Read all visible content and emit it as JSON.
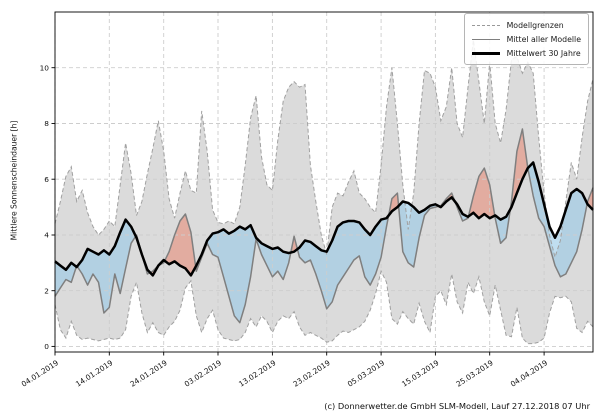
{
  "figure": {
    "caption": "(c) Donnerwetter.de GmbH SLM-Modell, Lauf 27.12.2018 07 Uhr"
  },
  "chart_data": {
    "type": "line",
    "title": "",
    "xlabel": "",
    "ylabel": "Mittlere Sonnenscheindauer [h]",
    "x_unit": "days since 04.01.2019, daily values",
    "xlim": [
      0,
      99
    ],
    "ylim": [
      -0.2,
      12
    ],
    "yticks": [
      0,
      2,
      4,
      6,
      8,
      10
    ],
    "grid": true,
    "legend_position": "upper right",
    "legend": {
      "entries": [
        {
          "label": "Modellgrenzen",
          "style": "dashed-gray"
        },
        {
          "label": "Mittel aller Modelle",
          "style": "solid-gray"
        },
        {
          "label": "Mittelwert 30 Jahre",
          "style": "solid-black-thick"
        }
      ]
    },
    "xticks": {
      "days": [
        0,
        10,
        20,
        30,
        40,
        50,
        60,
        70,
        80,
        90
      ],
      "labels": [
        "04.01.2019",
        "14.01.2019",
        "24.01.2019",
        "03.02.2019",
        "13.02.2019",
        "23.02.2019",
        "05.03.2019",
        "15.03.2019",
        "25.03.2019",
        "04.04.2019"
      ]
    },
    "series": [
      {
        "name": "Modellgrenzen (oben)",
        "role": "upper-bound",
        "values": [
          4.4,
          5.2,
          6.1,
          6.45,
          5.2,
          5.6,
          4.8,
          4.3,
          4.0,
          4.2,
          4.5,
          4.3,
          5.8,
          7.3,
          6.2,
          4.7,
          5.2,
          6.2,
          7.1,
          8.1,
          7.0,
          5.3,
          4.6,
          5.5,
          6.3,
          5.6,
          5.5,
          8.45,
          7.0,
          4.9,
          4.45,
          4.4,
          4.5,
          4.4,
          5.0,
          6.5,
          8.2,
          9.0,
          6.8,
          5.8,
          5.6,
          7.4,
          8.8,
          9.3,
          9.5,
          9.3,
          9.4,
          6.5,
          5.2,
          4.0,
          3.3,
          5.0,
          5.5,
          5.4,
          5.9,
          6.3,
          5.5,
          5.3,
          5.0,
          4.8,
          6.5,
          8.6,
          10.0,
          8.0,
          5.8,
          4.2,
          5.5,
          8.0,
          9.9,
          9.8,
          9.3,
          8.1,
          8.6,
          10.0,
          8.0,
          7.5,
          9.3,
          11.0,
          9.5,
          8.0,
          10.2,
          8.0,
          7.3,
          8.5,
          10.3,
          10.4,
          9.8,
          10.2,
          9.8,
          7.5,
          5.5,
          4.0,
          3.2,
          3.8,
          5.2,
          6.6,
          6.0,
          7.5,
          8.8,
          9.6
        ]
      },
      {
        "name": "Modellgrenzen (unten)",
        "role": "lower-bound",
        "values": [
          1.5,
          0.6,
          0.3,
          0.9,
          0.4,
          0.25,
          0.3,
          0.25,
          0.2,
          0.25,
          0.3,
          0.25,
          0.3,
          0.6,
          1.8,
          2.3,
          1.2,
          0.5,
          0.85,
          0.5,
          0.4,
          0.7,
          0.9,
          1.3,
          2.1,
          2.35,
          1.1,
          0.5,
          1.0,
          1.3,
          0.6,
          0.3,
          0.25,
          0.2,
          0.25,
          0.5,
          1.0,
          0.7,
          1.1,
          0.9,
          0.5,
          0.9,
          1.1,
          1.0,
          1.25,
          0.7,
          0.4,
          0.5,
          0.4,
          0.3,
          0.15,
          0.2,
          0.4,
          0.55,
          0.5,
          0.6,
          0.7,
          0.9,
          1.3,
          1.9,
          2.7,
          2.3,
          1.0,
          0.8,
          1.25,
          1.0,
          0.8,
          1.55,
          0.9,
          0.5,
          1.8,
          2.0,
          1.5,
          2.6,
          1.6,
          1.2,
          2.3,
          1.9,
          2.5,
          1.6,
          1.1,
          2.2,
          1.3,
          0.4,
          0.35,
          1.4,
          0.3,
          0.1,
          0.1,
          0.15,
          0.3,
          1.2,
          1.8,
          1.75,
          1.8,
          1.6,
          0.65,
          0.5,
          0.9,
          0.7
        ]
      },
      {
        "name": "Mittel aller Modelle",
        "role": "model-mean",
        "values": [
          1.8,
          2.1,
          2.4,
          2.3,
          2.9,
          2.6,
          2.2,
          2.6,
          2.3,
          1.2,
          1.4,
          2.6,
          1.9,
          2.8,
          3.7,
          4.0,
          3.3,
          2.6,
          2.7,
          2.9,
          3.0,
          3.4,
          4.0,
          4.5,
          4.75,
          4.1,
          2.7,
          3.2,
          3.7,
          3.3,
          3.2,
          2.5,
          1.8,
          1.1,
          0.85,
          1.5,
          2.5,
          3.85,
          3.3,
          2.9,
          2.5,
          2.7,
          2.4,
          3.0,
          3.95,
          3.2,
          3.0,
          3.1,
          2.6,
          2.0,
          1.35,
          1.6,
          2.2,
          2.5,
          2.8,
          3.1,
          3.25,
          2.5,
          2.2,
          2.6,
          3.2,
          4.3,
          5.3,
          5.5,
          3.4,
          3.0,
          2.85,
          3.9,
          4.7,
          4.95,
          5.0,
          5.05,
          5.3,
          5.5,
          5.0,
          4.5,
          4.6,
          5.4,
          6.1,
          6.4,
          5.8,
          4.6,
          3.7,
          3.9,
          5.2,
          7.0,
          7.8,
          6.4,
          5.4,
          4.6,
          4.3,
          3.6,
          2.9,
          2.5,
          2.6,
          3.0,
          3.4,
          4.2,
          5.2,
          5.7
        ]
      },
      {
        "name": "Mittelwert 30 Jahre",
        "role": "climate-mean",
        "values": [
          3.05,
          2.9,
          2.75,
          3.0,
          2.85,
          3.1,
          3.5,
          3.4,
          3.3,
          3.45,
          3.3,
          3.6,
          4.1,
          4.55,
          4.3,
          3.9,
          3.3,
          2.75,
          2.55,
          2.9,
          3.1,
          2.95,
          3.05,
          2.9,
          2.8,
          2.55,
          2.9,
          3.3,
          3.8,
          4.05,
          4.1,
          4.2,
          4.05,
          4.15,
          4.3,
          4.2,
          4.35,
          3.9,
          3.7,
          3.6,
          3.5,
          3.55,
          3.4,
          3.35,
          3.4,
          3.55,
          3.8,
          3.75,
          3.6,
          3.45,
          3.4,
          3.8,
          4.3,
          4.45,
          4.5,
          4.5,
          4.45,
          4.2,
          4.0,
          4.3,
          4.55,
          4.6,
          4.85,
          5.0,
          5.2,
          5.15,
          5.0,
          4.8,
          4.9,
          5.05,
          5.1,
          5.0,
          5.2,
          5.35,
          5.1,
          4.75,
          4.65,
          4.8,
          4.6,
          4.75,
          4.6,
          4.7,
          4.55,
          4.65,
          5.0,
          5.5,
          6.0,
          6.4,
          6.6,
          5.9,
          5.1,
          4.3,
          3.9,
          4.3,
          4.9,
          5.5,
          5.65,
          5.5,
          5.1,
          4.9
        ]
      }
    ],
    "colors": {
      "range_fill": "#dbdbdb",
      "range_border": "#a0a0a0",
      "model_mean_line": "#7f7f7f",
      "climate_mean_line": "#000000",
      "above_normal_fill": "rgba(230,140,120,0.6)",
      "below_normal_fill": "rgba(150,200,230,0.6)",
      "grid": "#cdcdcd"
    }
  }
}
